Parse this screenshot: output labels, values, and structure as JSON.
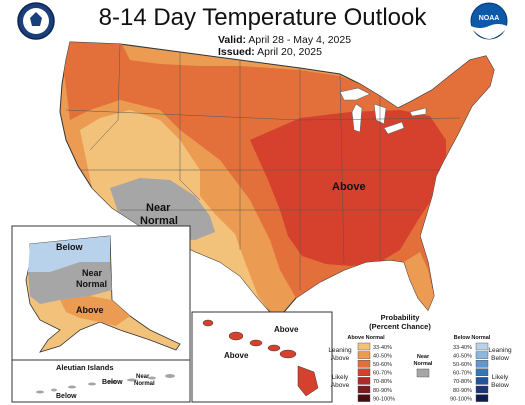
{
  "header": {
    "title": "8-14 Day Temperature Outlook",
    "valid_label": "Valid:",
    "valid_value": "April 28 - May 4, 2025",
    "issued_label": "Issued:",
    "issued_value": "April 20, 2025"
  },
  "logos": {
    "left": "commerce-seal-icon",
    "right_text": "NOAA"
  },
  "map_labels": {
    "conus_above": "Above",
    "conus_near_1": "Near",
    "conus_near_2": "Normal",
    "ak_below": "Below",
    "ak_near_1": "Near",
    "ak_near_2": "Normal",
    "ak_above": "Above",
    "hi_above_1": "Above",
    "hi_above_2": "Above",
    "aleutian_title": "Aleutian Islands",
    "aleutian_near_1": "Near",
    "aleutian_near_2": "Normal",
    "aleutian_below_1": "Below",
    "aleutian_below_2": "Below"
  },
  "legend": {
    "title_1": "Probability",
    "title_2": "(Percent Chance)",
    "above_header": "Above Normal",
    "below_header": "Below Normal",
    "leaning_above_1": "Leaning",
    "leaning_above_2": "Above",
    "likely_above_1": "Likely",
    "likely_above_2": "Above",
    "leaning_below_1": "Leaning",
    "leaning_below_2": "Below",
    "likely_below_1": "Likely",
    "likely_below_2": "Below",
    "near_1": "Near",
    "near_2": "Normal",
    "above_bins": [
      {
        "label": "33-40%",
        "color": "#f3c27a"
      },
      {
        "label": "40-50%",
        "color": "#eb9b52"
      },
      {
        "label": "50-60%",
        "color": "#e3703b"
      },
      {
        "label": "60-70%",
        "color": "#d6412e"
      },
      {
        "label": "70-80%",
        "color": "#b02a2a"
      },
      {
        "label": "80-90%",
        "color": "#7d1a1e"
      },
      {
        "label": "90-100%",
        "color": "#4a0d12"
      }
    ],
    "below_bins": [
      {
        "label": "33-40%",
        "color": "#b9d2ec"
      },
      {
        "label": "40-50%",
        "color": "#8eb7e0"
      },
      {
        "label": "50-60%",
        "color": "#5f97cf"
      },
      {
        "label": "60-70%",
        "color": "#3575b8"
      },
      {
        "label": "70-80%",
        "color": "#1f55a0"
      },
      {
        "label": "80-90%",
        "color": "#1a3579"
      },
      {
        "label": "90-100%",
        "color": "#111c4c"
      }
    ],
    "near_color": "#a6a6a6"
  }
}
